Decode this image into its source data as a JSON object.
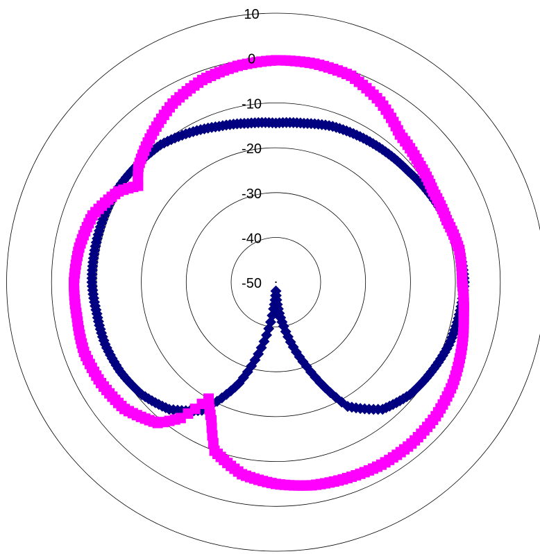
{
  "chart_data": {
    "type": "polar-line",
    "title": "",
    "radial_axis": {
      "min": -50,
      "max": 10,
      "ticks": [
        -50,
        -40,
        -30,
        -20,
        -10,
        0,
        10
      ],
      "tick_labels": [
        "-50",
        "-40",
        "-30",
        "-20",
        "-10",
        "0",
        "10"
      ]
    },
    "angle_unit": "degrees",
    "angle_zero": "top",
    "angle_direction": "clockwise",
    "grid": true,
    "legend": "none",
    "series": [
      {
        "color": "#000080",
        "marker": "diamond",
        "points": [
          [
            0,
            -14.5
          ],
          [
            10,
            -14
          ],
          [
            20,
            -13
          ],
          [
            30,
            -12.5
          ],
          [
            40,
            -12
          ],
          [
            50,
            -11.5
          ],
          [
            60,
            -10.5
          ],
          [
            70,
            -9.5
          ],
          [
            80,
            -8.5
          ],
          [
            90,
            -8
          ],
          [
            100,
            -8.5
          ],
          [
            110,
            -9
          ],
          [
            120,
            -10
          ],
          [
            130,
            -11
          ],
          [
            140,
            -13
          ],
          [
            150,
            -18
          ],
          [
            160,
            -30
          ],
          [
            170,
            -40
          ],
          [
            175,
            -44
          ],
          [
            180,
            -48
          ],
          [
            185,
            -44
          ],
          [
            190,
            -38
          ],
          [
            200,
            -26
          ],
          [
            210,
            -17
          ],
          [
            220,
            -13
          ],
          [
            230,
            -11
          ],
          [
            240,
            -10
          ],
          [
            250,
            -9.5
          ],
          [
            260,
            -9.5
          ],
          [
            270,
            -9
          ],
          [
            280,
            -9
          ],
          [
            290,
            -9
          ],
          [
            300,
            -9
          ],
          [
            310,
            -9.5
          ],
          [
            320,
            -10
          ],
          [
            330,
            -11.5
          ],
          [
            340,
            -13
          ],
          [
            350,
            -14
          ],
          [
            360,
            -14.5
          ]
        ]
      },
      {
        "color": "#ff00ff",
        "marker": "square",
        "points": [
          [
            0,
            -0.5
          ],
          [
            10,
            -0.5
          ],
          [
            20,
            -1
          ],
          [
            30,
            -3.5
          ],
          [
            40,
            -7
          ],
          [
            50,
            -8.5
          ],
          [
            60,
            -9.5
          ],
          [
            70,
            -9.5
          ],
          [
            80,
            -8.5
          ],
          [
            90,
            -8.5
          ],
          [
            100,
            -7.5
          ],
          [
            110,
            -6
          ],
          [
            120,
            -4.5
          ],
          [
            130,
            -3.5
          ],
          [
            140,
            -3
          ],
          [
            150,
            -3
          ],
          [
            160,
            -3.5
          ],
          [
            170,
            -4
          ],
          [
            180,
            -5
          ],
          [
            190,
            -6.5
          ],
          [
            200,
            -10
          ],
          [
            205,
            -16
          ],
          [
            210,
            -20
          ],
          [
            215,
            -13
          ],
          [
            220,
            -9
          ],
          [
            230,
            -6
          ],
          [
            240,
            -5
          ],
          [
            250,
            -4.5
          ],
          [
            260,
            -5
          ],
          [
            270,
            -5
          ],
          [
            280,
            -5.5
          ],
          [
            290,
            -6.5
          ],
          [
            300,
            -9.5
          ],
          [
            305,
            -12.5
          ],
          [
            310,
            -10
          ],
          [
            320,
            -7
          ],
          [
            330,
            -4
          ],
          [
            340,
            -2
          ],
          [
            350,
            -1
          ],
          [
            360,
            -0.5
          ]
        ]
      }
    ]
  }
}
